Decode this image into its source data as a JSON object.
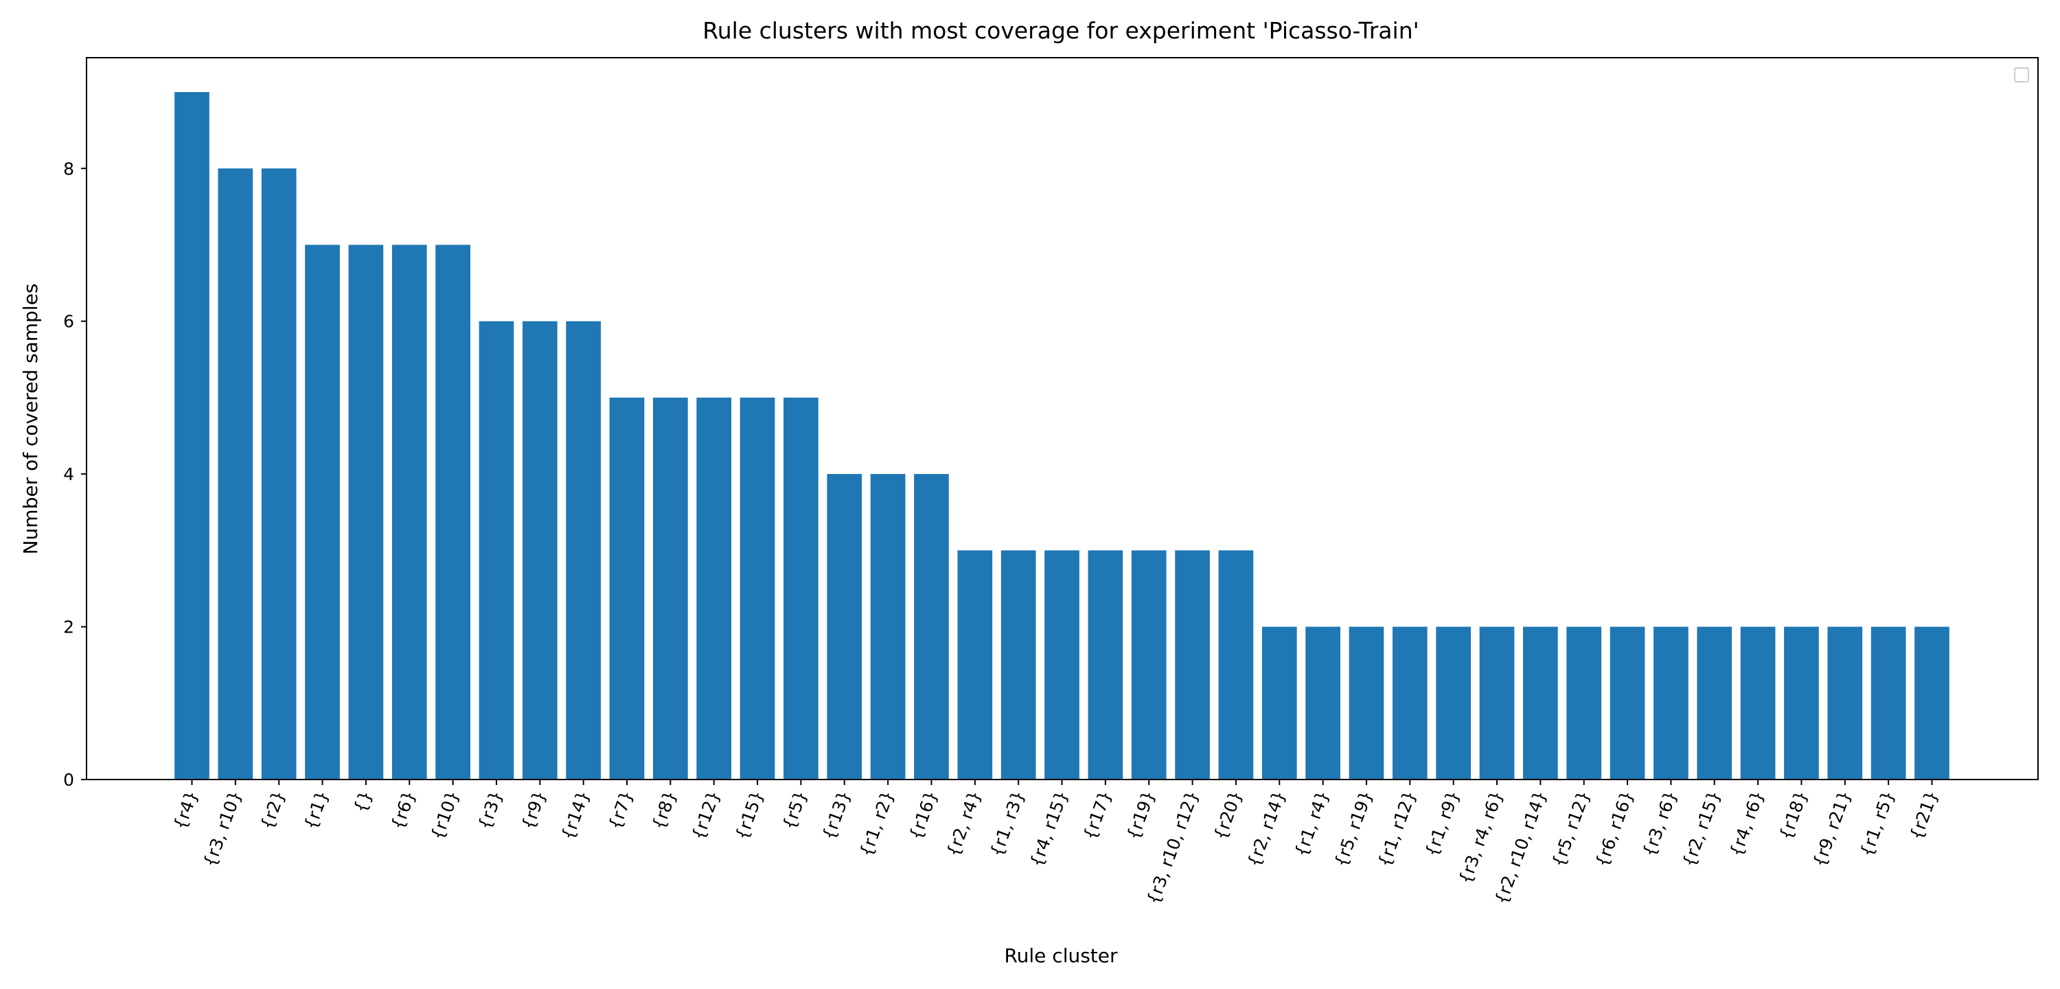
{
  "chart_data": {
    "type": "bar",
    "title": "Rule clusters with most coverage for experiment 'Picasso-Train'",
    "xlabel": "Rule cluster",
    "ylabel": "Number of covered samples",
    "ylim": [
      0,
      9.45
    ],
    "yticks": [
      0,
      2,
      4,
      6,
      8
    ],
    "grid": false,
    "legend": "top-right, empty",
    "bar_color": "#1f77b4",
    "categories": [
      "{r4}",
      "{r3, r10}",
      "{r2}",
      "{r1}",
      "{}",
      "{r6}",
      "{r10}",
      "{r3}",
      "{r9}",
      "{r14}",
      "{r7}",
      "{r8}",
      "{r12}",
      "{r15}",
      "{r5}",
      "{r13}",
      "{r1, r2}",
      "{r16}",
      "{r2, r4}",
      "{r1, r3}",
      "{r4, r15}",
      "{r17}",
      "{r19}",
      "{r3, r10, r12}",
      "{r20}",
      "{r2, r14}",
      "{r1, r4}",
      "{r5, r19}",
      "{r1, r12}",
      "{r1, r9}",
      "{r3, r4, r6}",
      "{r2, r10, r14}",
      "{r5, r12}",
      "{r6, r16}",
      "{r3, r6}",
      "{r2, r15}",
      "{r4, r6}",
      "{r18}",
      "{r9, r21}",
      "{r1, r5}",
      "{r21}"
    ],
    "values": [
      9,
      8,
      8,
      7,
      7,
      7,
      7,
      6,
      6,
      6,
      5,
      5,
      5,
      5,
      5,
      4,
      4,
      4,
      3,
      3,
      3,
      3,
      3,
      3,
      3,
      2,
      2,
      2,
      2,
      2,
      2,
      2,
      2,
      2,
      2,
      2,
      2,
      2,
      2,
      2,
      2
    ]
  }
}
